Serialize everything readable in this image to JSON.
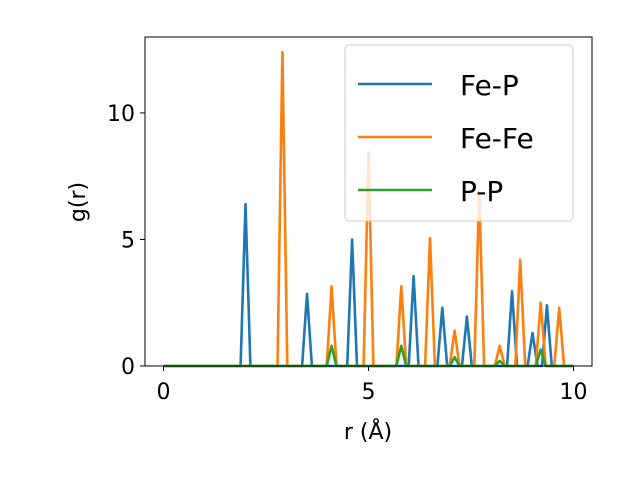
{
  "chart_data": {
    "type": "line",
    "xlabel": "r (Å)",
    "ylabel": "g(r)",
    "xlim": [
      -0.45,
      10.45
    ],
    "ylim": [
      0,
      13.0
    ],
    "xticks": [
      0,
      5,
      10
    ],
    "yticks": [
      0,
      5,
      10
    ],
    "grid": false,
    "legend_position": "top-right",
    "series": [
      {
        "name": "Fe-P",
        "color": "#1f77b4",
        "peaks": [
          {
            "x": 2.0,
            "y": 6.4
          },
          {
            "x": 3.5,
            "y": 2.85
          },
          {
            "x": 4.6,
            "y": 5.0
          },
          {
            "x": 6.1,
            "y": 3.55
          },
          {
            "x": 6.8,
            "y": 2.3
          },
          {
            "x": 7.4,
            "y": 1.95
          },
          {
            "x": 8.5,
            "y": 2.95
          },
          {
            "x": 9.0,
            "y": 1.3
          },
          {
            "x": 9.35,
            "y": 2.4
          }
        ]
      },
      {
        "name": "Fe-Fe",
        "color": "#ff7f0e",
        "peaks": [
          {
            "x": 2.9,
            "y": 12.4
          },
          {
            "x": 4.1,
            "y": 3.15
          },
          {
            "x": 5.0,
            "y": 8.45
          },
          {
            "x": 5.8,
            "y": 3.15
          },
          {
            "x": 6.5,
            "y": 5.05
          },
          {
            "x": 7.1,
            "y": 1.4
          },
          {
            "x": 7.7,
            "y": 6.9
          },
          {
            "x": 8.2,
            "y": 0.8
          },
          {
            "x": 8.7,
            "y": 4.2
          },
          {
            "x": 9.2,
            "y": 2.5
          },
          {
            "x": 9.65,
            "y": 2.3
          }
        ]
      },
      {
        "name": "P-P",
        "color": "#2ca02c",
        "peaks": [
          {
            "x": 4.1,
            "y": 0.8
          },
          {
            "x": 5.8,
            "y": 0.8
          },
          {
            "x": 7.1,
            "y": 0.35
          },
          {
            "x": 8.2,
            "y": 0.2
          },
          {
            "x": 9.2,
            "y": 0.65
          }
        ]
      }
    ]
  }
}
